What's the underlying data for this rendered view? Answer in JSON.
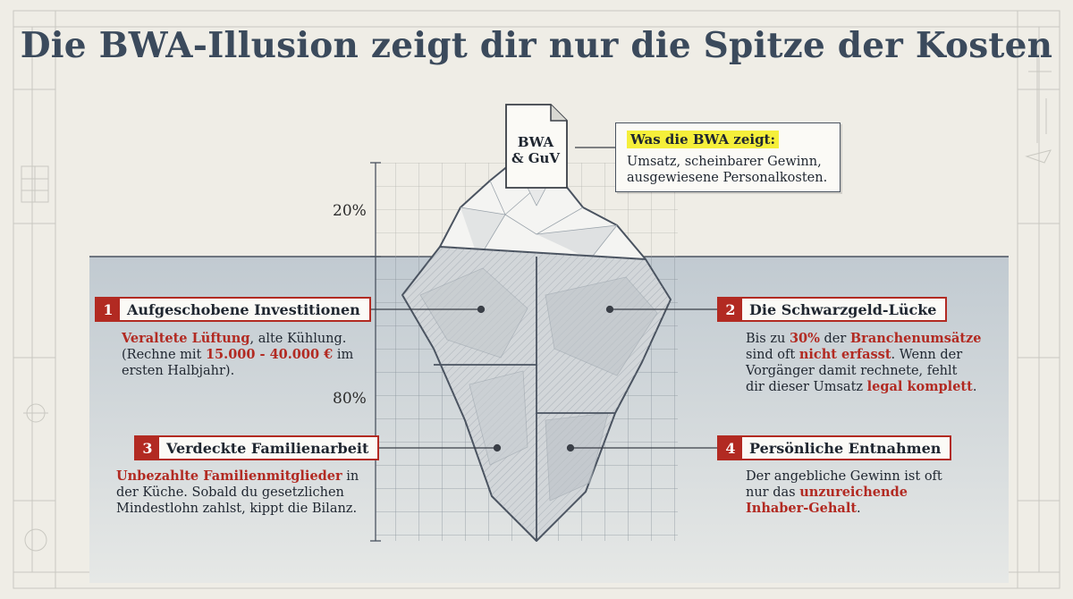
{
  "title": "Die BWA-Illusion zeigt dir nur die Spitze der Kosten",
  "scale": {
    "top_label": "20%",
    "bottom_label": "80%"
  },
  "document": {
    "line1": "BWA",
    "line2": "& GuV"
  },
  "info_box": {
    "title": "Was die BWA zeigt:",
    "line1": "Umsatz, scheinbarer Gewinn,",
    "line2": "ausgewiesene Personalkosten."
  },
  "items": [
    {
      "number": "1",
      "label": "Aufgeschobene Investitionen",
      "desc": [
        [
          {
            "t": "Veraltete Lüftung",
            "h": true
          },
          {
            "t": ", alte Kühlung.",
            "h": false
          }
        ],
        [
          {
            "t": "(Rechne mit ",
            "h": false
          },
          {
            "t": "15.000 - 40.000 €",
            "h": true
          },
          {
            "t": " im",
            "h": false
          }
        ],
        [
          {
            "t": "ersten Halbjahr).",
            "h": false
          }
        ]
      ]
    },
    {
      "number": "2",
      "label": "Die Schwarzgeld-Lücke",
      "desc": [
        [
          {
            "t": "Bis zu ",
            "h": false
          },
          {
            "t": "30%",
            "h": true
          },
          {
            "t": " der ",
            "h": false
          },
          {
            "t": "Branchenumsätze",
            "h": true
          }
        ],
        [
          {
            "t": "sind oft ",
            "h": false
          },
          {
            "t": "nicht erfasst",
            "h": true
          },
          {
            "t": ". Wenn der",
            "h": false
          }
        ],
        [
          {
            "t": "Vorgänger damit rechnete, fehlt",
            "h": false
          }
        ],
        [
          {
            "t": "dir dieser Umsatz ",
            "h": false
          },
          {
            "t": "legal komplett",
            "h": true
          },
          {
            "t": ".",
            "h": false
          }
        ]
      ]
    },
    {
      "number": "3",
      "label": "Verdeckte Familienarbeit",
      "desc": [
        [
          {
            "t": "Unbezahlte Familienmitglieder",
            "h": true
          },
          {
            "t": " in",
            "h": false
          }
        ],
        [
          {
            "t": "der Küche. Sobald du gesetzlichen",
            "h": false
          }
        ],
        [
          {
            "t": "Mindestlohn zahlst, kippt die Bilanz.",
            "h": false
          }
        ]
      ]
    },
    {
      "number": "4",
      "label": "Persönliche Entnahmen",
      "desc": [
        [
          {
            "t": "Der angebliche Gewinn ist oft",
            "h": false
          }
        ],
        [
          {
            "t": "nur das ",
            "h": false
          },
          {
            "t": "unzureichende",
            "h": true
          }
        ],
        [
          {
            "t": "Inhaber-Gehalt",
            "h": true
          },
          {
            "t": ".",
            "h": false
          }
        ]
      ]
    }
  ],
  "colors": {
    "accent": "#b22a22",
    "highlight": "#f5ef3a",
    "water": "#c3ccd3",
    "title": "#3b4a5c"
  }
}
